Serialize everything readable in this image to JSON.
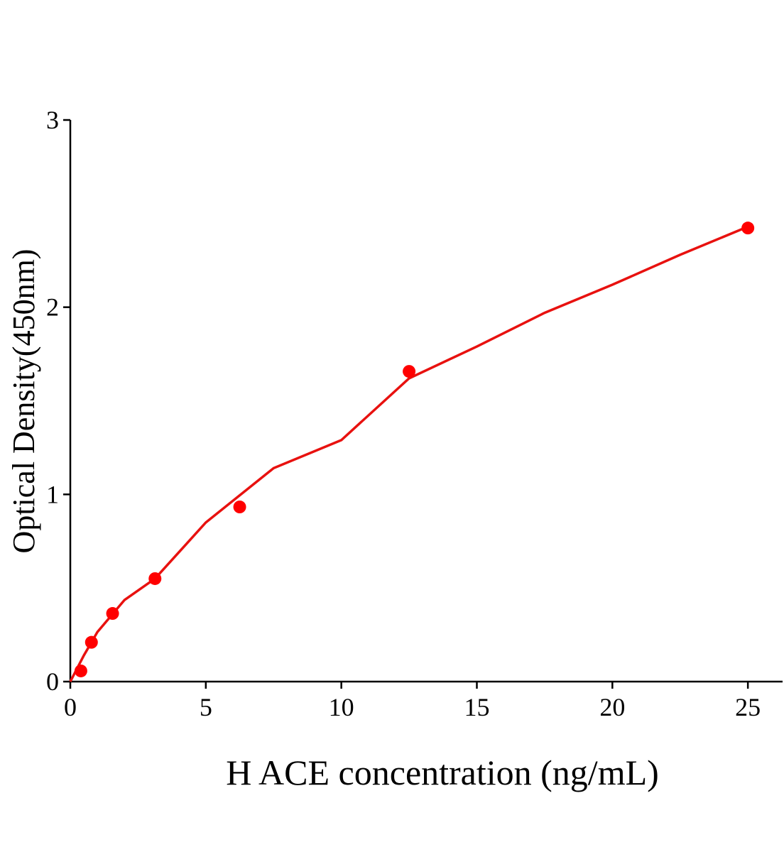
{
  "chart_data": {
    "type": "scatter",
    "x_label": "H ACE concentration (ng/mL)",
    "y_label": "Optical Density(450nm)",
    "xlim": [
      0,
      26.28
    ],
    "xticks": [
      0,
      5,
      10,
      15,
      20,
      25
    ],
    "ylim": [
      0,
      3
    ],
    "yticks": [
      0,
      1,
      2,
      3
    ],
    "grid": false,
    "series": [
      {
        "type": "scatter",
        "color": "#ff0000",
        "x": [
          0.39,
          0.78,
          1.56,
          3.125,
          6.25,
          12.5,
          25
        ],
        "values": [
          0.057,
          0.21,
          0.364,
          0.55,
          0.933,
          1.657,
          2.423
        ]
      },
      {
        "type": "line",
        "color": "#e8110f",
        "x": [
          0,
          0.5,
          1,
          2,
          3.125,
          5,
          7.5,
          10,
          12.5,
          15,
          17.5,
          20,
          22.5,
          25
        ],
        "values": [
          0,
          0.14,
          0.265,
          0.436,
          0.55,
          0.85,
          1.14,
          1.29,
          1.62,
          1.79,
          1.97,
          2.12,
          2.28,
          2.43
        ]
      }
    ]
  }
}
